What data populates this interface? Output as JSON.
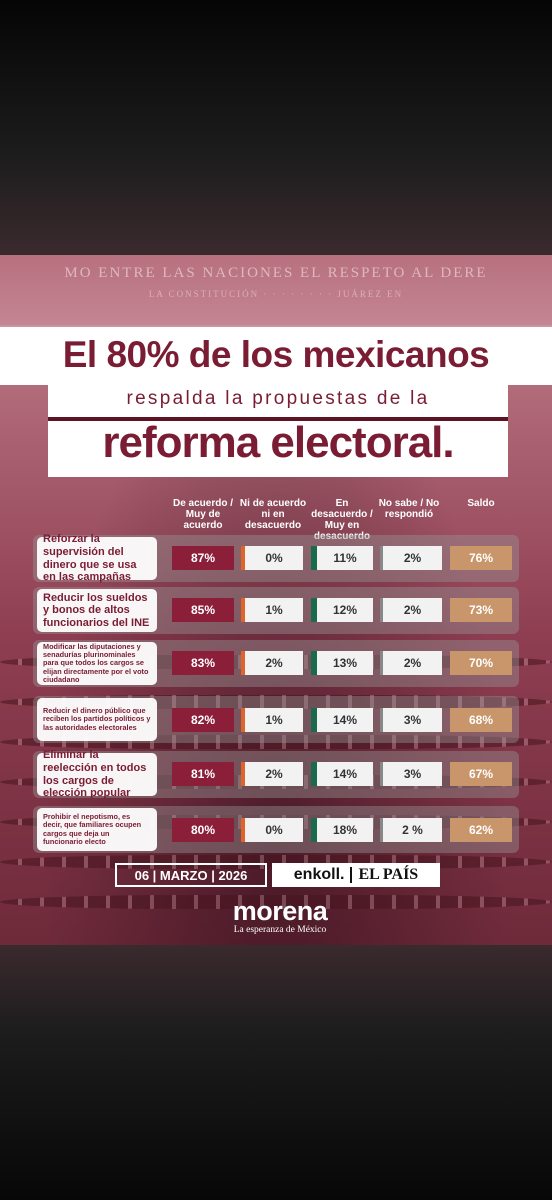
{
  "background_text": {
    "frieze_line1": "MO ENTRE LAS NACIONES EL RESPETO AL DERE",
    "frieze_line2": "LA CONSTITUCIÓN · · · · · · · · JUÁREZ EN"
  },
  "headline": {
    "line1": "El 80% de los mexicanos",
    "line2": "respalda la propuestas de la",
    "line3": "reforma electoral."
  },
  "table": {
    "columns": [
      "De acuerdo / Muy de acuerdo",
      "Ni de acuerdo ni en desacuerdo",
      "En desacuerdo / Muy en desacuerdo",
      "No sabe / No respondió",
      "Saldo"
    ],
    "rows": [
      {
        "label": "Reforzar la supervisión del dinero que se usa en las campañas",
        "agree": "87%",
        "neutral": "0%",
        "disagree": "11%",
        "dk": "2%",
        "saldo": "76%"
      },
      {
        "label": "Reducir los sueldos y bonos de altos funcionarios del INE",
        "agree": "85%",
        "neutral": "1%",
        "disagree": "12%",
        "dk": "2%",
        "saldo": "73%"
      },
      {
        "label": "Modificar las diputaciones y senadurías plurinominales para que todos los cargos se elijan directamente por el voto ciudadano",
        "agree": "83%",
        "neutral": "2%",
        "disagree": "13%",
        "dk": "2%",
        "saldo": "70%"
      },
      {
        "label": "Reducir el dinero público que reciben los partidos políticos y las autoridades electorales",
        "agree": "82%",
        "neutral": "1%",
        "disagree": "14%",
        "dk": "3%",
        "saldo": "68%"
      },
      {
        "label": "Eliminar la reelección en todos los cargos de elección popular",
        "agree": "81%",
        "neutral": "2%",
        "disagree": "14%",
        "dk": "3%",
        "saldo": "67%"
      },
      {
        "label": "Prohibir el nepotismo, es decir, que familiares ocupen cargos que deja un funcionario electo",
        "agree": "80%",
        "neutral": "0%",
        "disagree": "18%",
        "dk": "2 %",
        "saldo": "62%"
      }
    ]
  },
  "footer": {
    "date": "06 | MARZO | 2026",
    "pollster": "enkoll.",
    "newspaper": "EL PAÍS",
    "brand": "morena",
    "tagline": "La esperanza de México"
  },
  "colors": {
    "agree": "#8b1f3a",
    "saldo": "#c9966b",
    "disagree_bar": "#1a6b4e",
    "neutral_bar": "#e0642a",
    "headline": "#7a1c33"
  }
}
